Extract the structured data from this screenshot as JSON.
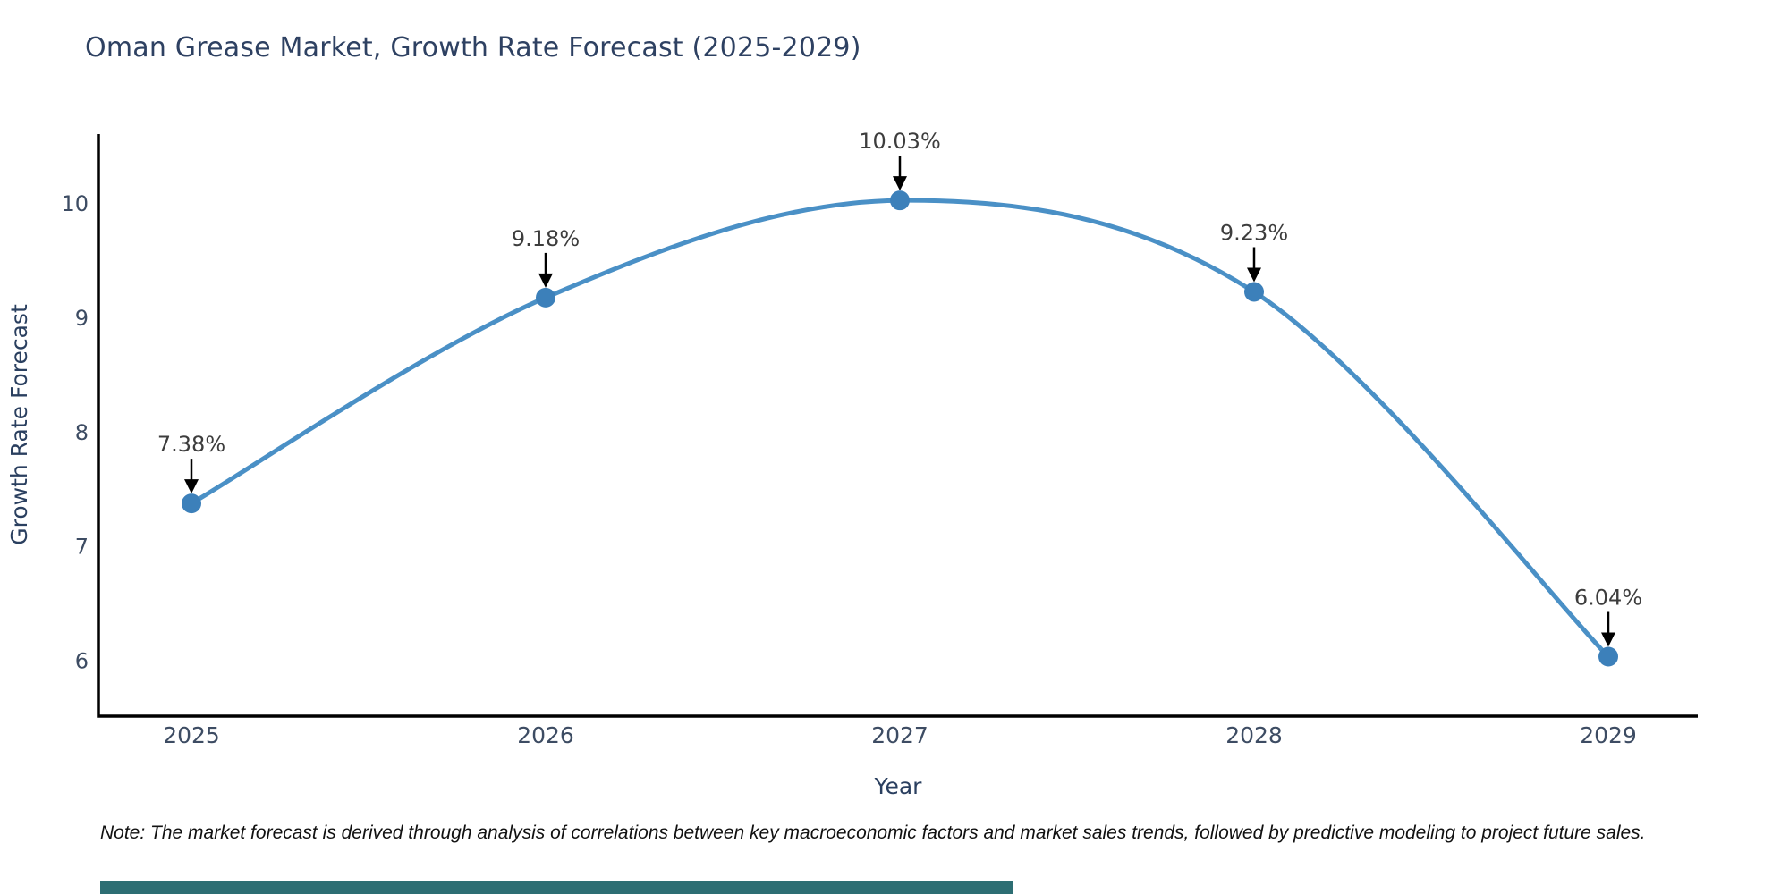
{
  "title": "Oman Grease Market, Growth Rate Forecast (2025-2029)",
  "note": "Note: The market forecast is derived through analysis of correlations between key macroeconomic factors and market sales trends, followed by predictive modeling to project future sales.",
  "chart_data": {
    "type": "line",
    "title": "Oman Grease Market, Growth Rate Forecast (2025-2029)",
    "xlabel": "Year",
    "ylabel": "Growth Rate Forecast",
    "categories": [
      "2025",
      "2026",
      "2027",
      "2028",
      "2029"
    ],
    "series": [
      {
        "name": "Growth Rate Forecast",
        "values": [
          7.38,
          9.18,
          10.03,
          9.23,
          6.04
        ]
      }
    ],
    "data_labels": [
      "7.38%",
      "9.18%",
      "10.03%",
      "9.23%",
      "6.04%"
    ],
    "yticks": [
      6,
      7,
      8,
      9,
      10
    ],
    "ylim": [
      5.52,
      10.61
    ],
    "grid": false,
    "line_shape": "spline",
    "legend": "none",
    "annotation_style": "label-with-down-arrow",
    "colors": {
      "line": "#4a90c6",
      "marker": "#3c80ba",
      "axis": "#000000",
      "tick_text": "#3d4c63",
      "axis_title_text": "#2a3f5f",
      "annotation_text": "#3d3d3d",
      "annotation_arrow": "#000000",
      "title_text": "#2e4162",
      "accent_bar": "#2d6e73",
      "background": "#ffffff"
    }
  }
}
